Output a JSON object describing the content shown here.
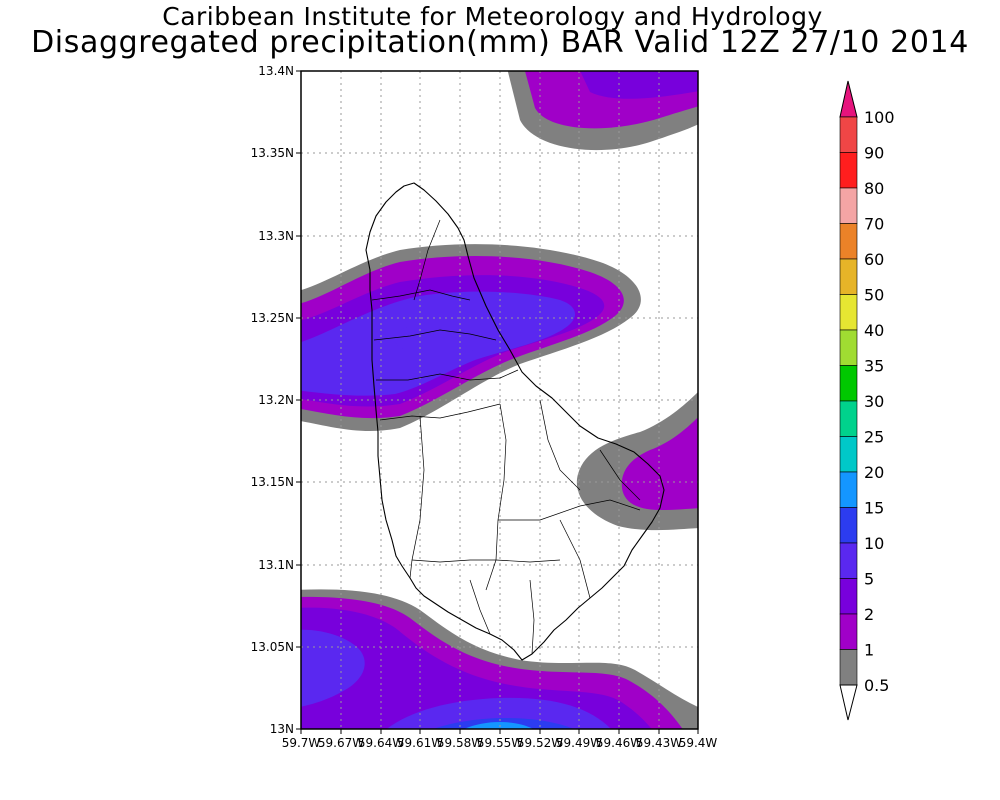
{
  "title": {
    "line1": "Caribbean Institute for Meteorology and Hydrology",
    "line2": "Disaggregated precipitation(mm) BAR Valid 12Z 27/10 2014"
  },
  "axes": {
    "lon_ticks": [
      "59.7W",
      "59.67W",
      "59.64W",
      "59.61W",
      "59.58W",
      "59.55W",
      "59.52W",
      "59.49W",
      "59.46W",
      "59.43W",
      "59.4W"
    ],
    "lat_ticks": [
      "13.4N",
      "13.35N",
      "13.3N",
      "13.25N",
      "13.2N",
      "13.15N",
      "13.1N",
      "13.05N",
      "13N"
    ],
    "lon_range": [
      -59.7,
      -59.4
    ],
    "lat_range": [
      13.0,
      13.4
    ],
    "grid": true
  },
  "colorbar": {
    "levels": [
      "0.5",
      "1",
      "2",
      "5",
      "10",
      "15",
      "20",
      "25",
      "30",
      "35",
      "40",
      "50",
      "60",
      "70",
      "80",
      "90",
      "100"
    ],
    "colors": [
      "#808080",
      "#a000c8",
      "#7800dc",
      "#5a28f0",
      "#2c3cf0",
      "#1496ff",
      "#00c8c8",
      "#00d28c",
      "#00c800",
      "#a0dc32",
      "#e6e632",
      "#e6b428",
      "#eb8228",
      "#f4a5a5",
      "#ff1e1e",
      "#f04646",
      "#e6147d"
    ]
  },
  "icons": {
    "colorbar_max": "triangle-up",
    "colorbar_min": "triangle-down"
  }
}
